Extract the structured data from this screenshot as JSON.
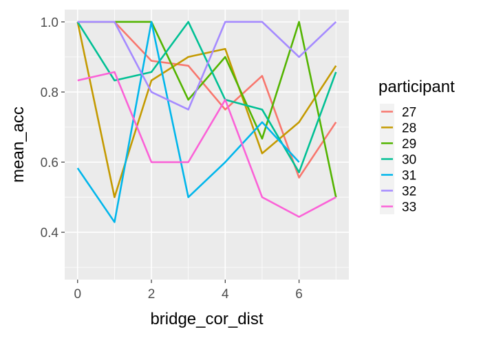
{
  "chart_data": {
    "type": "line",
    "title": "",
    "xlabel": "bridge_cor_dist",
    "ylabel": "mean_acc",
    "xlim": [
      -0.35,
      7.35
    ],
    "ylim": [
      0.265,
      1.035
    ],
    "x_ticks": [
      0,
      2,
      4,
      6
    ],
    "x_tick_labels": [
      "0",
      "2",
      "4",
      "6"
    ],
    "y_ticks": [
      0.4,
      0.6,
      0.8,
      1.0
    ],
    "y_tick_labels": [
      "0.4",
      "0.6",
      "0.8",
      "1.0"
    ],
    "grid": true,
    "legend": {
      "title": "participant",
      "position": "right"
    },
    "x": [
      0,
      1,
      2,
      3,
      4,
      5,
      6,
      7
    ],
    "series": [
      {
        "name": "27",
        "color": "#F8766D",
        "values": [
          1.0,
          1.0,
          0.889,
          0.875,
          0.75,
          0.846,
          0.556,
          0.714
        ]
      },
      {
        "name": "28",
        "color": "#C49A00",
        "values": [
          1.0,
          0.5,
          0.833,
          0.9,
          0.923,
          0.625,
          0.714,
          0.875
        ]
      },
      {
        "name": "29",
        "color": "#53B400",
        "values": [
          1.0,
          1.0,
          1.0,
          0.778,
          0.9,
          0.667,
          1.0,
          0.5
        ]
      },
      {
        "name": "30",
        "color": "#00C094",
        "values": [
          1.0,
          0.833,
          0.857,
          1.0,
          0.778,
          0.75,
          0.571,
          0.857
        ]
      },
      {
        "name": "31",
        "color": "#00B6EB",
        "values": [
          0.583,
          0.429,
          1.0,
          0.5,
          0.6,
          0.714,
          0.6,
          null
        ]
      },
      {
        "name": "32",
        "color": "#A58AFF",
        "values": [
          1.0,
          1.0,
          0.8,
          0.75,
          1.0,
          1.0,
          0.9,
          1.0
        ]
      },
      {
        "name": "33",
        "color": "#FB61D7",
        "values": [
          0.833,
          0.857,
          0.6,
          0.6,
          0.778,
          0.5,
          0.444,
          0.5
        ]
      }
    ]
  }
}
